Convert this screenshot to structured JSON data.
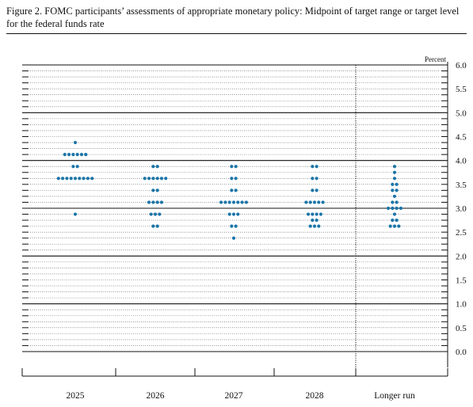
{
  "title": "Figure 2. FOMC participants’ assessments of appropriate monetary policy: Midpoint of target range or target level for the federal funds rate",
  "colors": {
    "dot": "#1b75a8",
    "axis": "#111111"
  },
  "chart_data": {
    "type": "scatter",
    "subtype": "dot-plot",
    "unit_label": "Percent",
    "ylim": [
      0,
      6.0
    ],
    "ytick_labels": [
      "6.0",
      "5.5",
      "5.0",
      "4.5",
      "4.0",
      "3.5",
      "3.0",
      "2.5",
      "2.0",
      "1.5",
      "1.0",
      "0.5",
      "0.0"
    ],
    "categories": [
      "2025",
      "2026",
      "2027",
      "2028",
      "Longer run"
    ],
    "separator_after_category": "2028",
    "dots": [
      {
        "category": "2025",
        "points": [
          {
            "y": 4.375,
            "count": 1
          },
          {
            "y": 4.125,
            "count": 6
          },
          {
            "y": 3.875,
            "count": 2
          },
          {
            "y": 3.625,
            "count": 9
          },
          {
            "y": 2.875,
            "count": 1
          }
        ]
      },
      {
        "category": "2026",
        "points": [
          {
            "y": 3.875,
            "count": 2
          },
          {
            "y": 3.625,
            "count": 6
          },
          {
            "y": 3.375,
            "count": 2
          },
          {
            "y": 3.125,
            "count": 4
          },
          {
            "y": 2.875,
            "count": 3
          },
          {
            "y": 2.625,
            "count": 2
          }
        ]
      },
      {
        "category": "2027",
        "points": [
          {
            "y": 3.875,
            "count": 2
          },
          {
            "y": 3.625,
            "count": 2
          },
          {
            "y": 3.375,
            "count": 2
          },
          {
            "y": 3.125,
            "count": 7
          },
          {
            "y": 2.875,
            "count": 3
          },
          {
            "y": 2.625,
            "count": 2
          },
          {
            "y": 2.375,
            "count": 1
          }
        ]
      },
      {
        "category": "2028",
        "points": [
          {
            "y": 3.875,
            "count": 2
          },
          {
            "y": 3.625,
            "count": 2
          },
          {
            "y": 3.375,
            "count": 2
          },
          {
            "y": 3.125,
            "count": 5
          },
          {
            "y": 2.875,
            "count": 4
          },
          {
            "y": 2.75,
            "count": 2
          },
          {
            "y": 2.625,
            "count": 3
          }
        ]
      },
      {
        "category": "Longer run",
        "points": [
          {
            "y": 3.875,
            "count": 1
          },
          {
            "y": 3.75,
            "count": 1
          },
          {
            "y": 3.625,
            "count": 1
          },
          {
            "y": 3.5,
            "count": 2
          },
          {
            "y": 3.375,
            "count": 2
          },
          {
            "y": 3.25,
            "count": 1
          },
          {
            "y": 3.125,
            "count": 2
          },
          {
            "y": 3.0,
            "count": 4
          },
          {
            "y": 2.875,
            "count": 1
          },
          {
            "y": 2.75,
            "count": 2
          },
          {
            "y": 2.625,
            "count": 3
          }
        ]
      }
    ]
  }
}
